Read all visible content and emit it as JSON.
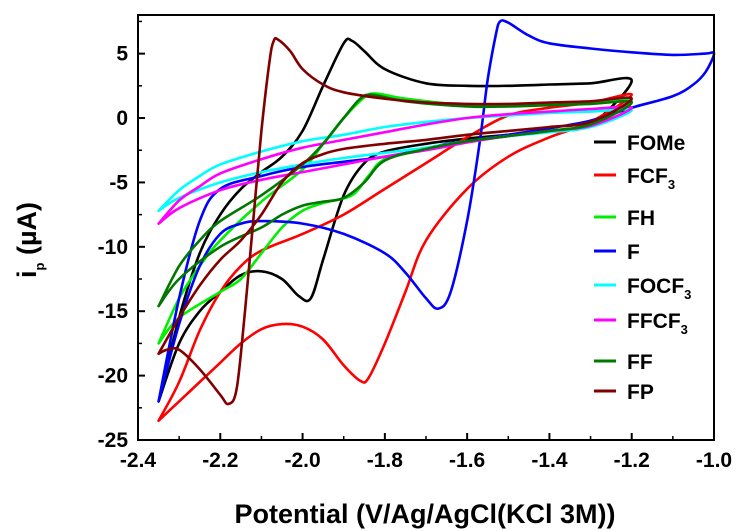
{
  "chart_data": {
    "type": "line",
    "xlabel": "Potential (V/Ag/AgCl(KCl 3M))",
    "ylabel": {
      "main": "i",
      "sub": "p",
      "unit": " (µA)"
    },
    "xlim": [
      -2.4,
      -1.0
    ],
    "ylim": [
      -25,
      8
    ],
    "xticks": [
      -2.4,
      -2.2,
      -2.0,
      -1.8,
      -1.6,
      -1.4,
      -1.2,
      -1.0
    ],
    "yticks": [
      5,
      0,
      -5,
      -10,
      -15,
      -20,
      -25
    ],
    "grid": false,
    "legend_position": "right",
    "series": [
      {
        "name": "FOMe",
        "color": "#000000",
        "anodic": [
          [
            -2.35,
            -22
          ],
          [
            -2.3,
            -15.5
          ],
          [
            -2.25,
            -10.5
          ],
          [
            -2.2,
            -7.5
          ],
          [
            -2.15,
            -5.5
          ],
          [
            -2.1,
            -4.2
          ],
          [
            -2.05,
            -3
          ],
          [
            -2.0,
            -1
          ],
          [
            -1.95,
            2.5
          ],
          [
            -1.9,
            5.8
          ],
          [
            -1.88,
            6
          ],
          [
            -1.85,
            5.2
          ],
          [
            -1.8,
            3.8
          ],
          [
            -1.7,
            2.7
          ],
          [
            -1.6,
            2.5
          ],
          [
            -1.5,
            2.5
          ],
          [
            -1.4,
            2.6
          ],
          [
            -1.3,
            2.7
          ],
          [
            -1.2,
            2.9
          ]
        ],
        "cathodic": [
          [
            -1.2,
            0.5
          ],
          [
            -1.3,
            -0.5
          ],
          [
            -1.4,
            -1
          ],
          [
            -1.5,
            -1.3
          ],
          [
            -1.6,
            -1.6
          ],
          [
            -1.7,
            -2
          ],
          [
            -1.8,
            -2.6
          ],
          [
            -1.85,
            -3.5
          ],
          [
            -1.9,
            -6
          ],
          [
            -1.95,
            -11
          ],
          [
            -1.98,
            -14
          ],
          [
            -2.01,
            -13.8
          ],
          [
            -2.05,
            -12.5
          ],
          [
            -2.1,
            -11.9
          ],
          [
            -2.15,
            -12.2
          ],
          [
            -2.2,
            -13.5
          ],
          [
            -2.25,
            -15
          ],
          [
            -2.3,
            -17.5
          ],
          [
            -2.35,
            -22
          ]
        ]
      },
      {
        "name": "FCF3",
        "color": "#ff0000",
        "anodic": [
          [
            -2.35,
            -23.5
          ],
          [
            -2.3,
            -20.5
          ],
          [
            -2.25,
            -16.5
          ],
          [
            -2.2,
            -13.5
          ],
          [
            -2.15,
            -11.5
          ],
          [
            -2.1,
            -10.3
          ],
          [
            -2.0,
            -9
          ],
          [
            -1.9,
            -7.5
          ],
          [
            -1.8,
            -5.5
          ],
          [
            -1.7,
            -3.5
          ],
          [
            -1.6,
            -1.5
          ],
          [
            -1.5,
            0.2
          ],
          [
            -1.4,
            0.8
          ],
          [
            -1.3,
            1.2
          ],
          [
            -1.2,
            1.8
          ]
        ],
        "cathodic": [
          [
            -1.2,
            1.2
          ],
          [
            -1.3,
            -0.3
          ],
          [
            -1.4,
            -1.5
          ],
          [
            -1.5,
            -3
          ],
          [
            -1.6,
            -5.5
          ],
          [
            -1.7,
            -9.5
          ],
          [
            -1.75,
            -13.5
          ],
          [
            -1.8,
            -17.5
          ],
          [
            -1.84,
            -20.2
          ],
          [
            -1.86,
            -20.4
          ],
          [
            -1.9,
            -19.2
          ],
          [
            -1.95,
            -17.2
          ],
          [
            -2.0,
            -16.2
          ],
          [
            -2.05,
            -16
          ],
          [
            -2.1,
            -16.4
          ],
          [
            -2.15,
            -17.5
          ],
          [
            -2.2,
            -19
          ],
          [
            -2.25,
            -20.5
          ],
          [
            -2.3,
            -22
          ],
          [
            -2.35,
            -23.5
          ]
        ]
      },
      {
        "name": "FH",
        "color": "#00ee00",
        "anodic": [
          [
            -2.35,
            -17.5
          ],
          [
            -2.3,
            -14
          ],
          [
            -2.25,
            -11.5
          ],
          [
            -2.2,
            -9.5
          ],
          [
            -2.1,
            -6.5
          ],
          [
            -2.0,
            -4
          ],
          [
            -1.95,
            -2
          ],
          [
            -1.9,
            0
          ],
          [
            -1.85,
            1.6
          ],
          [
            -1.82,
            1.9
          ],
          [
            -1.75,
            1.5
          ],
          [
            -1.6,
            1
          ],
          [
            -1.5,
            1
          ],
          [
            -1.4,
            1.1
          ],
          [
            -1.3,
            1.2
          ],
          [
            -1.2,
            1.3
          ]
        ],
        "cathodic": [
          [
            -1.2,
            0.3
          ],
          [
            -1.3,
            -0.5
          ],
          [
            -1.4,
            -1
          ],
          [
            -1.5,
            -1.4
          ],
          [
            -1.6,
            -1.8
          ],
          [
            -1.7,
            -2.4
          ],
          [
            -1.8,
            -3.2
          ],
          [
            -1.84,
            -4.5
          ],
          [
            -1.88,
            -6
          ],
          [
            -1.95,
            -6.6
          ],
          [
            -2.0,
            -7.2
          ],
          [
            -2.05,
            -8.5
          ],
          [
            -2.1,
            -10.5
          ],
          [
            -2.15,
            -12.5
          ],
          [
            -2.2,
            -13.5
          ],
          [
            -2.3,
            -15.5
          ],
          [
            -2.35,
            -17.5
          ]
        ]
      },
      {
        "name": "F",
        "color": "#0000ff",
        "anodic": [
          [
            -2.35,
            -22
          ],
          [
            -2.3,
            -16
          ],
          [
            -2.25,
            -11.5
          ],
          [
            -2.2,
            -9
          ],
          [
            -2.15,
            -8.2
          ],
          [
            -2.1,
            -8
          ],
          [
            -2.0,
            -8.2
          ],
          [
            -1.9,
            -9
          ],
          [
            -1.8,
            -10.5
          ],
          [
            -1.75,
            -12
          ],
          [
            -1.7,
            -14
          ],
          [
            -1.67,
            -14.8
          ],
          [
            -1.64,
            -13.5
          ],
          [
            -1.6,
            -8
          ],
          [
            -1.57,
            -2
          ],
          [
            -1.55,
            3
          ],
          [
            -1.53,
            6.5
          ],
          [
            -1.52,
            7.5
          ],
          [
            -1.5,
            7.4
          ],
          [
            -1.45,
            6.4
          ],
          [
            -1.4,
            5.8
          ],
          [
            -1.3,
            5.4
          ],
          [
            -1.2,
            5.1
          ],
          [
            -1.1,
            4.9
          ],
          [
            -1.02,
            5
          ],
          [
            -1.0,
            5
          ]
        ],
        "cathodic": [
          [
            -1.0,
            5
          ],
          [
            -1.02,
            3.6
          ],
          [
            -1.05,
            2.6
          ],
          [
            -1.1,
            1.7
          ],
          [
            -1.2,
            0.8
          ],
          [
            -1.3,
            -0.2
          ],
          [
            -1.4,
            -0.8
          ],
          [
            -1.5,
            -1.3
          ],
          [
            -1.6,
            -1.8
          ],
          [
            -1.65,
            -2
          ],
          [
            -1.7,
            -2.4
          ],
          [
            -1.8,
            -3
          ],
          [
            -1.9,
            -3.4
          ],
          [
            -2.0,
            -3.8
          ],
          [
            -2.1,
            -4.5
          ],
          [
            -2.2,
            -5.5
          ],
          [
            -2.25,
            -8
          ],
          [
            -2.3,
            -14
          ],
          [
            -2.35,
            -22
          ]
        ]
      },
      {
        "name": "FOCF3",
        "color": "#00ffff",
        "anodic": [
          [
            -2.35,
            -7.2
          ],
          [
            -2.3,
            -5.6
          ],
          [
            -2.25,
            -4.5
          ],
          [
            -2.2,
            -3.6
          ],
          [
            -2.1,
            -2.6
          ],
          [
            -2.0,
            -1.8
          ],
          [
            -1.9,
            -1.3
          ],
          [
            -1.8,
            -0.7
          ],
          [
            -1.7,
            -0.3
          ],
          [
            -1.6,
            0
          ],
          [
            -1.5,
            0.2
          ],
          [
            -1.4,
            0.4
          ],
          [
            -1.3,
            0.5
          ],
          [
            -1.2,
            0.6
          ]
        ],
        "cathodic": [
          [
            -1.2,
            0
          ],
          [
            -1.3,
            -0.7
          ],
          [
            -1.4,
            -1.1
          ],
          [
            -1.5,
            -1.4
          ],
          [
            -1.6,
            -1.8
          ],
          [
            -1.7,
            -2.3
          ],
          [
            -1.8,
            -2.7
          ],
          [
            -1.9,
            -3.1
          ],
          [
            -2.0,
            -3.6
          ],
          [
            -2.1,
            -4.2
          ],
          [
            -2.2,
            -5
          ],
          [
            -2.3,
            -6.2
          ],
          [
            -2.35,
            -7.2
          ]
        ]
      },
      {
        "name": "FFCF3",
        "color": "#ff00ff",
        "anodic": [
          [
            -2.35,
            -8.2
          ],
          [
            -2.3,
            -6.4
          ],
          [
            -2.25,
            -5.3
          ],
          [
            -2.2,
            -4.3
          ],
          [
            -2.1,
            -3.2
          ],
          [
            -2.0,
            -2.3
          ],
          [
            -1.9,
            -1.7
          ],
          [
            -1.8,
            -1.1
          ],
          [
            -1.7,
            -0.5
          ],
          [
            -1.6,
            0
          ],
          [
            -1.5,
            0.3
          ],
          [
            -1.4,
            0.5
          ],
          [
            -1.3,
            0.7
          ],
          [
            -1.2,
            0.8
          ]
        ],
        "cathodic": [
          [
            -1.2,
            0.1
          ],
          [
            -1.3,
            -0.6
          ],
          [
            -1.4,
            -1
          ],
          [
            -1.5,
            -1.4
          ],
          [
            -1.6,
            -1.9
          ],
          [
            -1.7,
            -2.5
          ],
          [
            -1.8,
            -3
          ],
          [
            -1.9,
            -3.6
          ],
          [
            -2.0,
            -4.2
          ],
          [
            -2.1,
            -4.8
          ],
          [
            -2.2,
            -5.6
          ],
          [
            -2.3,
            -7
          ],
          [
            -2.35,
            -8.2
          ]
        ]
      },
      {
        "name": "FF",
        "color": "#007700",
        "anodic": [
          [
            -2.35,
            -14.6
          ],
          [
            -2.3,
            -11.5
          ],
          [
            -2.25,
            -9.5
          ],
          [
            -2.2,
            -8
          ],
          [
            -2.1,
            -6
          ],
          [
            -2.0,
            -3.6
          ],
          [
            -1.95,
            -2
          ],
          [
            -1.9,
            0
          ],
          [
            -1.86,
            1.5
          ],
          [
            -1.83,
            1.8
          ],
          [
            -1.75,
            1.3
          ],
          [
            -1.6,
            0.9
          ],
          [
            -1.5,
            0.9
          ],
          [
            -1.4,
            1
          ],
          [
            -1.3,
            1.1
          ],
          [
            -1.2,
            1.2
          ]
        ],
        "cathodic": [
          [
            -1.2,
            0.2
          ],
          [
            -1.3,
            -0.5
          ],
          [
            -1.4,
            -1
          ],
          [
            -1.5,
            -1.4
          ],
          [
            -1.6,
            -1.8
          ],
          [
            -1.7,
            -2.4
          ],
          [
            -1.8,
            -3.3
          ],
          [
            -1.85,
            -5
          ],
          [
            -1.9,
            -6.2
          ],
          [
            -1.95,
            -6.5
          ],
          [
            -2.0,
            -6.8
          ],
          [
            -2.05,
            -7.5
          ],
          [
            -2.1,
            -8.5
          ],
          [
            -2.2,
            -10
          ],
          [
            -2.3,
            -12.5
          ],
          [
            -2.35,
            -14.6
          ]
        ]
      },
      {
        "name": "FP",
        "color": "#800000",
        "anodic": [
          [
            -2.35,
            -18.3
          ],
          [
            -2.33,
            -18
          ],
          [
            -2.3,
            -18
          ],
          [
            -2.25,
            -19.5
          ],
          [
            -2.2,
            -21.5
          ],
          [
            -2.18,
            -22.2
          ],
          [
            -2.16,
            -21
          ],
          [
            -2.14,
            -15
          ],
          [
            -2.12,
            -8
          ],
          [
            -2.1,
            -1
          ],
          [
            -2.08,
            4.5
          ],
          [
            -2.07,
            6
          ],
          [
            -2.06,
            6.1
          ],
          [
            -2.03,
            5.2
          ],
          [
            -2.0,
            3.8
          ],
          [
            -1.95,
            2.6
          ],
          [
            -1.9,
            2
          ],
          [
            -1.8,
            1.5
          ],
          [
            -1.7,
            1.2
          ],
          [
            -1.6,
            1.1
          ],
          [
            -1.5,
            1.1
          ],
          [
            -1.4,
            1.2
          ],
          [
            -1.3,
            1.3
          ],
          [
            -1.2,
            1.5
          ]
        ],
        "cathodic": [
          [
            -1.2,
            0.5
          ],
          [
            -1.3,
            -0.3
          ],
          [
            -1.4,
            -0.7
          ],
          [
            -1.5,
            -1
          ],
          [
            -1.6,
            -1.3
          ],
          [
            -1.7,
            -1.7
          ],
          [
            -1.8,
            -2
          ],
          [
            -1.9,
            -2.4
          ],
          [
            -1.95,
            -2.8
          ],
          [
            -2.0,
            -3.5
          ],
          [
            -2.05,
            -5
          ],
          [
            -2.1,
            -7.5
          ],
          [
            -2.15,
            -9.5
          ],
          [
            -2.2,
            -11
          ],
          [
            -2.25,
            -13
          ],
          [
            -2.3,
            -15.5
          ],
          [
            -2.35,
            -18.3
          ]
        ]
      }
    ]
  },
  "legend": [
    {
      "main": "FOMe",
      "sub": ""
    },
    {
      "main": "FCF",
      "sub": "3"
    },
    {
      "main": "FH",
      "sub": ""
    },
    {
      "main": "F",
      "sub": ""
    },
    {
      "main": "FOCF",
      "sub": "3"
    },
    {
      "main": "FFCF",
      "sub": "3"
    },
    {
      "main": "FF",
      "sub": ""
    },
    {
      "main": "FP",
      "sub": ""
    }
  ]
}
